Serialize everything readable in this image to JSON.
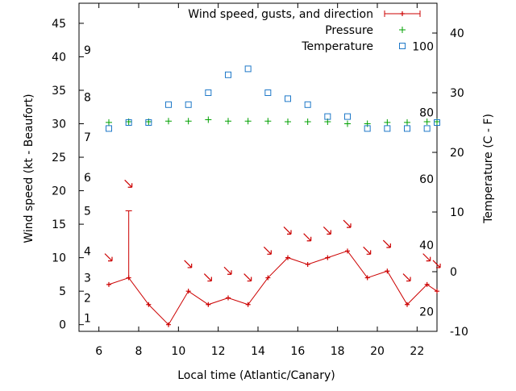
{
  "chart_data": {
    "type": "line",
    "xlabel": "Local time (Atlantic/Canary)",
    "ylabel": "Wind speed (kt - Beaufort)",
    "y2label": "Temperature (C - F)",
    "xlim": [
      5,
      23
    ],
    "ylim": [
      -1,
      48
    ],
    "y2lim": [
      -10,
      45
    ],
    "x_ticks": [
      6,
      8,
      10,
      12,
      14,
      16,
      18,
      20,
      22
    ],
    "y_ticks": [
      0,
      5,
      10,
      15,
      20,
      25,
      30,
      35,
      40,
      45
    ],
    "y2_ticks": [
      -10,
      0,
      10,
      20,
      30,
      40
    ],
    "beaufort_labels": [
      {
        "label": "1",
        "kt": 1
      },
      {
        "label": "2",
        "kt": 4
      },
      {
        "label": "3",
        "kt": 7
      },
      {
        "label": "4",
        "kt": 11
      },
      {
        "label": "5",
        "kt": 17
      },
      {
        "label": "6",
        "kt": 22
      },
      {
        "label": "7",
        "kt": 28
      },
      {
        "label": "8",
        "kt": 34
      },
      {
        "label": "9",
        "kt": 41
      }
    ],
    "fahrenheit_labels": [
      {
        "label": "20",
        "f": 20
      },
      {
        "label": "40",
        "f": 40
      },
      {
        "label": "60",
        "f": 60
      },
      {
        "label": "80",
        "f": 80
      },
      {
        "label": "100",
        "f": 100
      }
    ],
    "legend_position": "top-right",
    "grid": false,
    "series": [
      {
        "name": "Wind speed, gusts, and direction",
        "color": "#cc0000",
        "x": [
          6.5,
          7.5,
          8.5,
          9.5,
          10.5,
          11.5,
          12.5,
          13.5,
          14.5,
          15.5,
          16.5,
          17.5,
          18.5,
          19.5,
          20.5,
          21.5,
          22.5,
          23
        ],
        "values": [
          6,
          7,
          3,
          0,
          5,
          3,
          4,
          3,
          7,
          10,
          9,
          10,
          11,
          7,
          8,
          3,
          6,
          5
        ],
        "gusts": [
          null,
          17,
          null,
          null,
          null,
          null,
          null,
          null,
          null,
          null,
          null,
          null,
          null,
          null,
          null,
          null,
          null,
          null
        ],
        "direction_arrows": [
          {
            "x": 6.5,
            "kt": 10
          },
          {
            "x": 7.5,
            "kt": 21
          },
          {
            "x": 10.5,
            "kt": 9
          },
          {
            "x": 11.5,
            "kt": 7
          },
          {
            "x": 12.5,
            "kt": 8
          },
          {
            "x": 13.5,
            "kt": 7
          },
          {
            "x": 14.5,
            "kt": 11
          },
          {
            "x": 15.5,
            "kt": 14
          },
          {
            "x": 16.5,
            "kt": 13
          },
          {
            "x": 17.5,
            "kt": 14
          },
          {
            "x": 18.5,
            "kt": 15
          },
          {
            "x": 19.5,
            "kt": 11
          },
          {
            "x": 20.5,
            "kt": 12
          },
          {
            "x": 21.5,
            "kt": 7
          },
          {
            "x": 22.5,
            "kt": 10
          },
          {
            "x": 23,
            "kt": 9
          }
        ]
      },
      {
        "name": "Pressure",
        "color": "#00a000",
        "marker": "plus",
        "x": [
          6.5,
          7.5,
          8.5,
          9.5,
          10.5,
          11.5,
          12.5,
          13.5,
          14.5,
          15.5,
          16.5,
          17.5,
          18.5,
          19.5,
          20.5,
          21.5,
          22.5,
          23
        ],
        "values": [
          30.2,
          30.3,
          30.3,
          30.4,
          30.4,
          30.6,
          30.4,
          30.4,
          30.4,
          30.3,
          30.3,
          30.3,
          30.0,
          30.0,
          30.2,
          30.2,
          30.3,
          30.3
        ]
      },
      {
        "name": "Temperature",
        "color": "#1e78c8",
        "marker": "square",
        "axis": "y2",
        "x": [
          6.5,
          7.5,
          8.5,
          9.5,
          10.5,
          11.5,
          12.5,
          13.5,
          14.5,
          15.5,
          16.5,
          17.5,
          18.5,
          19.5,
          20.5,
          21.5,
          22.5,
          23
        ],
        "values": [
          24,
          25,
          25,
          28,
          28,
          30,
          33,
          34,
          30,
          29,
          28,
          26,
          26,
          24,
          24,
          24,
          24,
          25
        ]
      }
    ]
  }
}
